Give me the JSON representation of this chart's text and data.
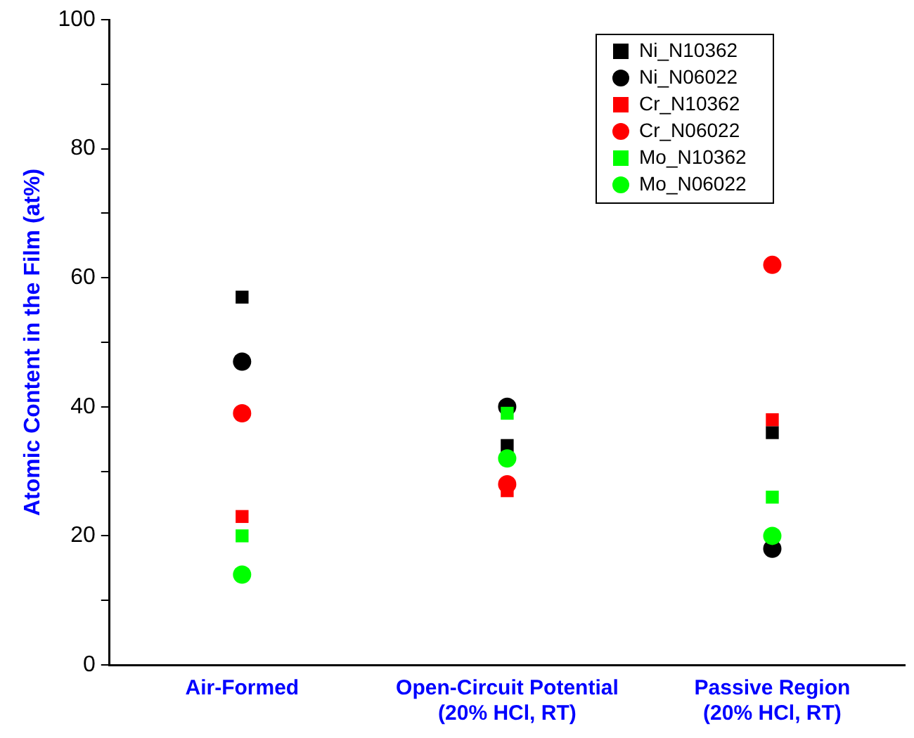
{
  "chart_data": {
    "type": "scatter",
    "ylabel": "Atomic Content in the Film (at%)",
    "categories": [
      "Air-Formed",
      "Open-Circuit Potential\n(20% HCl, RT)",
      "Passive Region\n(20% HCl, RT)"
    ],
    "series": [
      {
        "name": "Ni_N10362",
        "color": "#000000",
        "marker": "square",
        "values": [
          57,
          34,
          36
        ]
      },
      {
        "name": "Ni_N06022",
        "color": "#000000",
        "marker": "circle",
        "values": [
          47,
          40,
          18
        ]
      },
      {
        "name": "Cr_N10362",
        "color": "#ff0000",
        "marker": "square",
        "values": [
          23,
          27,
          38
        ]
      },
      {
        "name": "Cr_N06022",
        "color": "#ff0000",
        "marker": "circle",
        "values": [
          39,
          28,
          62
        ]
      },
      {
        "name": "Mo_N10362",
        "color": "#00ff00",
        "marker": "square",
        "values": [
          20,
          39,
          26
        ]
      },
      {
        "name": "Mo_N06022",
        "color": "#00ff00",
        "marker": "circle",
        "values": [
          14,
          32,
          20
        ]
      }
    ],
    "ylim": [
      0,
      100
    ],
    "yticks": [
      0,
      {
        "value": 10,
        "label": null
      },
      20,
      {
        "value": 30,
        "label": null
      },
      40,
      {
        "value": 50,
        "label": null
      },
      60,
      {
        "value": 70,
        "label": null
      },
      80,
      {
        "value": 90,
        "label": null
      },
      100
    ],
    "grid": false,
    "legend": "top right"
  }
}
